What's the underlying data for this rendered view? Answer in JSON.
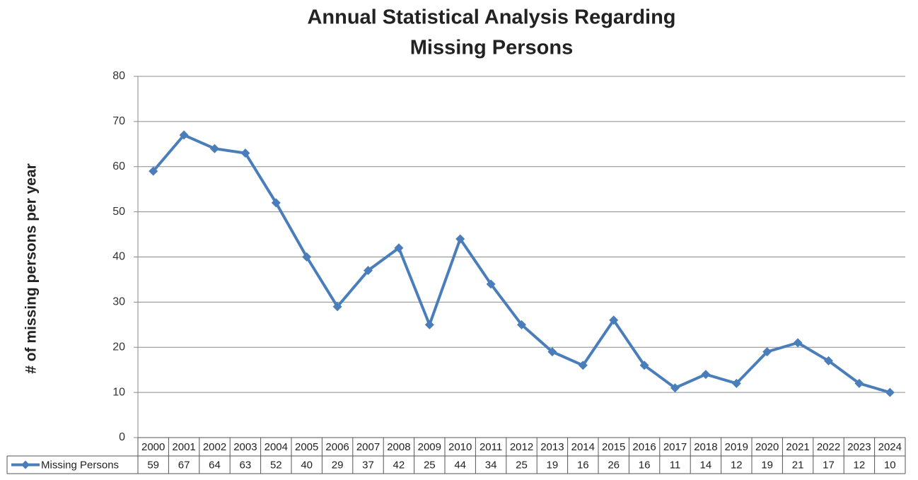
{
  "chart_data": {
    "type": "line",
    "title": [
      "Annual Statistical Analysis Regarding",
      "Missing Persons"
    ],
    "y_label": "# of missing persons per year",
    "categories": [
      "2000",
      "2001",
      "2002",
      "2003",
      "2004",
      "2005",
      "2006",
      "2007",
      "2008",
      "2009",
      "2010",
      "2011",
      "2012",
      "2013",
      "2014",
      "2015",
      "2016",
      "2017",
      "2018",
      "2019",
      "2020",
      "2021",
      "2022",
      "2023",
      "2024"
    ],
    "series": [
      {
        "name": "Missing Persons",
        "color": "#4a7ebb",
        "values": [
          59,
          67,
          64,
          63,
          52,
          40,
          29,
          37,
          42,
          25,
          44,
          34,
          25,
          19,
          16,
          26,
          16,
          11,
          14,
          12,
          19,
          21,
          17,
          12,
          10
        ]
      }
    ],
    "ylim": [
      0,
      80
    ],
    "yticks": [
      0,
      10,
      20,
      30,
      40,
      50,
      60,
      70,
      80
    ],
    "grid": true,
    "data_table": true
  }
}
